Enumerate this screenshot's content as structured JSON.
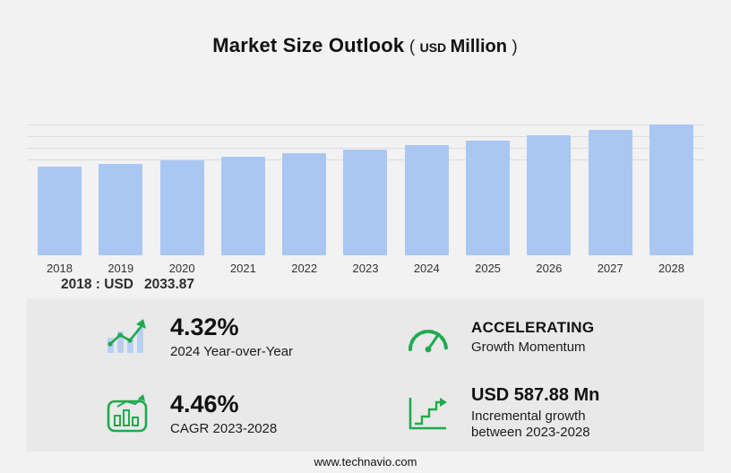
{
  "page": {
    "title": "Market Size Outlook",
    "unit_prefix": "(",
    "unit_currency": "USD",
    "unit_scale": "Million",
    "unit_suffix": ")",
    "footer": "www.technavio.com"
  },
  "chart_data": {
    "type": "bar",
    "title": "Market Size Outlook (USD Million)",
    "categories": [
      "2018",
      "2019",
      "2020",
      "2021",
      "2022",
      "2023",
      "2024",
      "2025",
      "2026",
      "2027",
      "2028"
    ],
    "values": [
      2033.87,
      2104.3,
      2177.4,
      2253.0,
      2331.1,
      2412.3,
      2516.5,
      2629.5,
      2747.6,
      2871.0,
      3000.2
    ],
    "ylim": [
      0,
      3100
    ],
    "grid": true,
    "legend": "none",
    "bar_color": "#aac7f2",
    "annotation": {
      "label": "2018 : USD",
      "value": "2033.87"
    }
  },
  "stats": {
    "accent_color": "#1faa4e",
    "items": [
      {
        "icon": "yoy-bar-growth-icon",
        "value": "4.32%",
        "label": "2024 Year-over-Year"
      },
      {
        "icon": "gauge-icon",
        "value": "ACCELERATING",
        "label": "Growth Momentum"
      },
      {
        "icon": "cagr-chart-icon",
        "value": "4.46%",
        "label": "CAGR 2023-2028"
      },
      {
        "icon": "incremental-growth-icon",
        "value": "USD 587.88 Mn",
        "label": "Incremental growth between 2023-2028"
      }
    ]
  }
}
